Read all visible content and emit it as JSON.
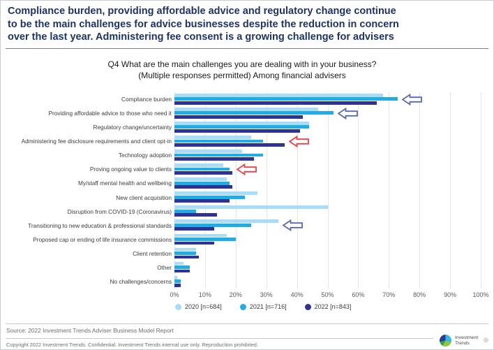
{
  "headline": [
    "Compliance burden, providing affordable advice and regulatory change continue",
    "to be the main challenges for advice businesses despite the reduction in concern",
    "over the last year. Administering fee consent is a growing challenge for advisers"
  ],
  "chart_data": {
    "type": "bar",
    "orientation": "horizontal",
    "title": "Q4 What are the main challenges you are dealing with in your business? (Multiple responses permitted) Among financial advisers",
    "title_lines": [
      "Q4 What are the main challenges you are dealing with in your business?",
      "(Multiple responses permitted) Among financial advisers"
    ],
    "categories": [
      "Compliance burden",
      "Providing affordable advice to those who need it",
      "Regulatory change/uncertainty",
      "Administering fee disclosure requirements and client opt-in",
      "Technology adoption",
      "Proving ongoing value to clients",
      "My/staff mental health and wellbeing",
      "New client acquisition",
      "Disruption from COVID-19 (Coronavirus)",
      "Transitioning to new education & professional standards",
      "Proposed cap or ending of life insurance commissions",
      "Client retention",
      "Other",
      "No challenges/concerns"
    ],
    "series": [
      {
        "name": "2020 [n=684]",
        "color": "#a9ddf7",
        "values": [
          68,
          47,
          44,
          25,
          22,
          16,
          17,
          27,
          50,
          34,
          17,
          7,
          3,
          1
        ]
      },
      {
        "name": "2021 [n=716]",
        "color": "#21ace4",
        "values": [
          73,
          52,
          44,
          29,
          29,
          18,
          18,
          23,
          7,
          25,
          20,
          7,
          5,
          2
        ]
      },
      {
        "name": "2022 [n=843]",
        "color": "#2f3293",
        "values": [
          66,
          42,
          41,
          36,
          26,
          19,
          19,
          18,
          14,
          13,
          13,
          8,
          5,
          2
        ]
      }
    ],
    "xlim": [
      0,
      100
    ],
    "x_ticks": [
      "0%",
      "10%",
      "20%",
      "30%",
      "40%",
      "50%",
      "60%",
      "70%",
      "80%",
      "90%",
      "100%"
    ],
    "grid": "vertical",
    "legend_position": "bottom",
    "annotations": [
      {
        "shape": "block-arrow-left",
        "color": "#5b67b0",
        "category_index": 0,
        "series_index": 1
      },
      {
        "shape": "block-arrow-left",
        "color": "#5b67b0",
        "category_index": 1,
        "series_index": 1
      },
      {
        "shape": "block-arrow-left",
        "color": "#ec4048",
        "category_index": 3,
        "series_index": 2
      },
      {
        "shape": "block-arrow-left",
        "color": "#ec4048",
        "category_index": 5,
        "series_index": 2
      },
      {
        "shape": "block-arrow-left",
        "color": "#5b67b0",
        "category_index": 9,
        "series_index": 0
      }
    ]
  },
  "footer": {
    "source": "Source: 2022 Investment Trends Adviser Business Model Report",
    "copyright": "Copyright 2022 Investment Trends. Confidential. Investment Trends internal use only. Reproduction prohibited.",
    "logo_line1": "Investment",
    "logo_line2": "Trends",
    "globe_glyph": "⊕"
  },
  "colors": {
    "headline_navy": "#1e3464",
    "gridline": "#e4e4e6",
    "axis_text": "#595959",
    "highlight_blue": "#5b67b0",
    "highlight_red": "#ec4048"
  }
}
